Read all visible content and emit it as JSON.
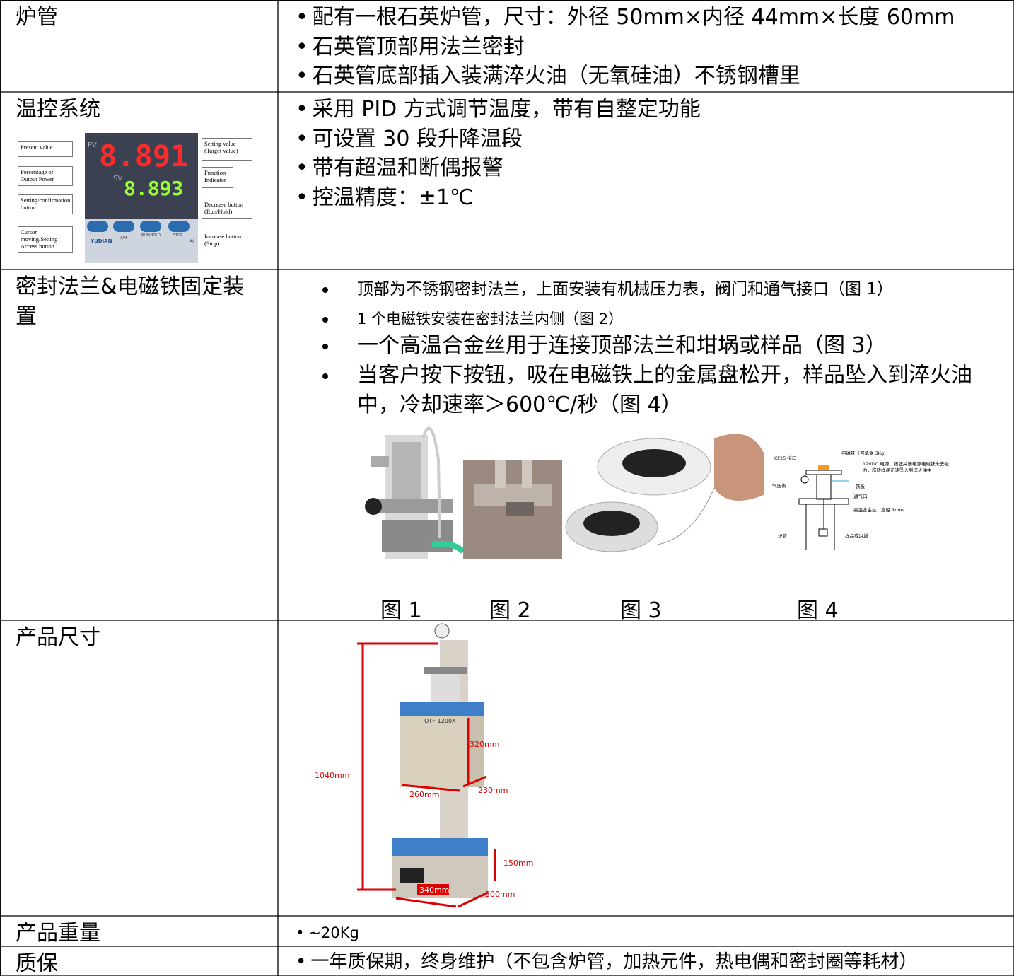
{
  "rows": [
    {
      "label": "炉管",
      "items": [
        "配有一根石英炉管，尺寸：外径 50mm×内径 44mm×长度 60mm",
        "石英管顶部用法兰密封",
        "石英管底部插入装满淬火油（无氧硅油）不锈钢槽里"
      ]
    },
    {
      "label": "温控系统",
      "items": [
        "采用 PID 方式调节温度，带有自整定功能",
        "可设置 30 段升降温段",
        "带有超温和断偶报警",
        "控温精度：±1℃"
      ],
      "controller": {
        "pv": "PV",
        "sv": "SV",
        "pv_display": "8.891",
        "sv_display": "8.893",
        "callouts": [
          "Present value",
          "Percentage of Output Power",
          "Setting/confirmation button",
          "Cursor moving/Setting Access button",
          "Setting value (Target value)",
          "Function Indicator",
          "Decrease button (Run/Hold)",
          "Increase button (Stop)"
        ],
        "keys": [
          "A/M",
          "RUN/HOLD",
          "STOP"
        ],
        "brand": "YUDIAN",
        "model": "AI"
      }
    },
    {
      "label": "密封法兰&电磁铁固定装置",
      "items": [
        "顶部为不锈钢密封法兰，上面安装有机械压力表，阀门和通气接口（图 1）",
        "1 个电磁铁安装在密封法兰内侧（图 2）",
        "一个高温合金丝用于连接顶部法兰和坩埚或样品（图 3）",
        "当客户按下按钮，吸在电磁铁上的金属盘松开，样品坠入到淬火油中，冷却速率＞600℃/秒（图 4）"
      ],
      "figures": [
        "图 1",
        "图 2",
        "图 3",
        "图 4"
      ],
      "diagram_labels": [
        "电磁铁（可承受 3Kg）",
        "KF25 接口",
        "12VDC 电源，按钮关闭电源电磁铁失去磁",
        "力，释放样品迅速坠入到淬火油中",
        "气压表",
        "铁板",
        "通气口",
        "高温合金丝，直径 1mm",
        "炉管",
        "样品或坩埚"
      ]
    },
    {
      "label": "产品尺寸",
      "model": "OTF-1200X",
      "dimensions": [
        "1040mm",
        "320mm",
        "260mm",
        "230mm",
        "150mm",
        "340mm",
        "300mm"
      ]
    },
    {
      "label": "产品重量",
      "items": [
        "~20Kg"
      ]
    },
    {
      "label": "质保",
      "items": [
        "一年质保期，终身维护（不包含炉管，加热元件，热电偶和密封圈等耗材）"
      ]
    }
  ]
}
